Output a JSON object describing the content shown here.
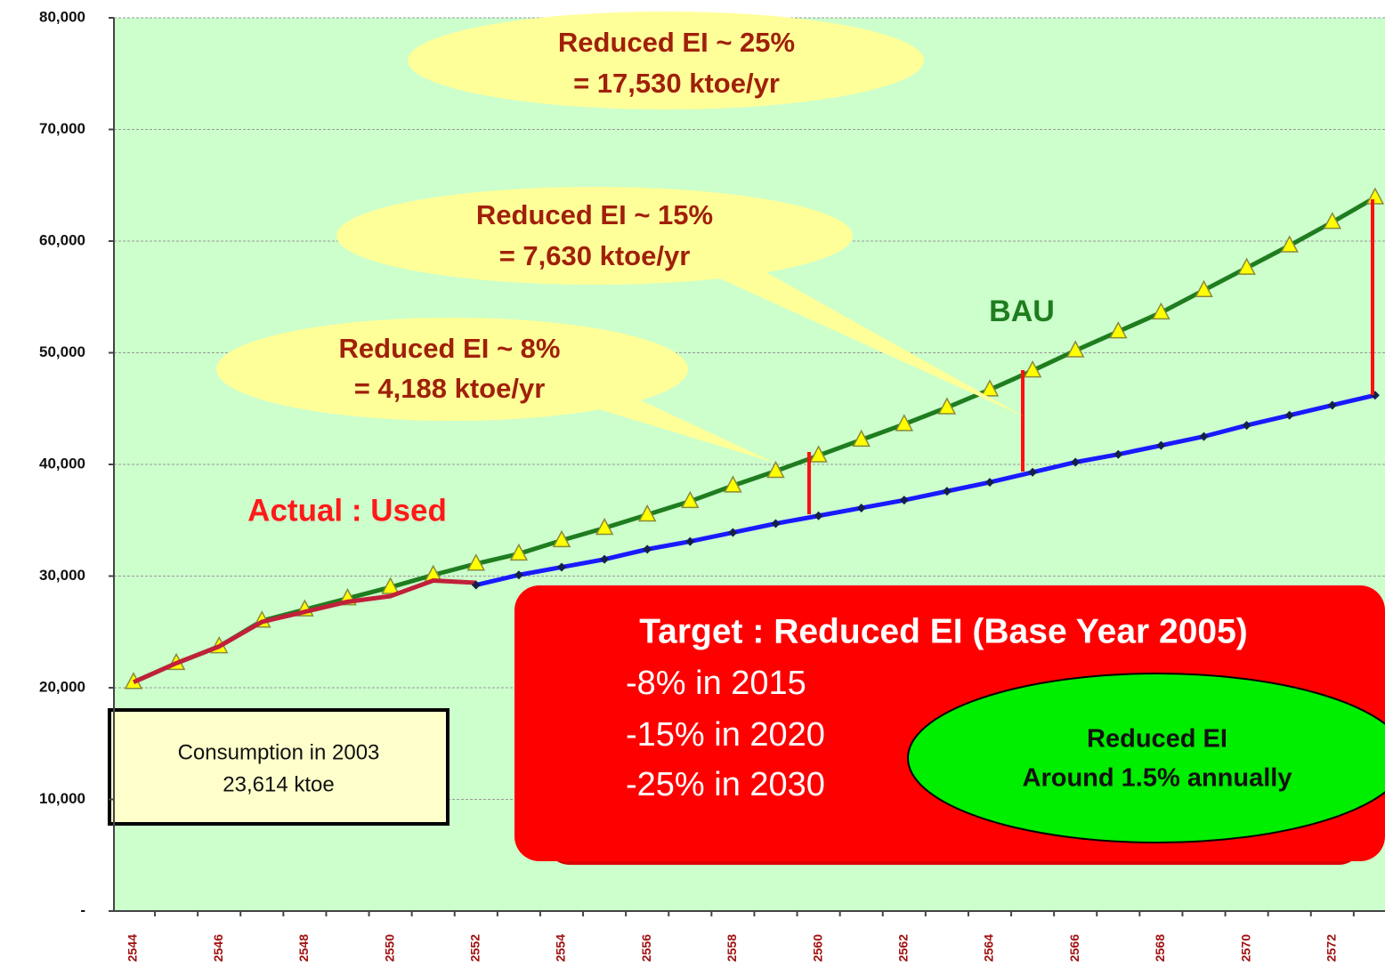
{
  "chart_data": {
    "type": "line",
    "categories": [
      "2544",
      null,
      "2546",
      null,
      "2548",
      null,
      "2550",
      null,
      "2552",
      null,
      "2554",
      null,
      "2556",
      null,
      "2558",
      null,
      "2560",
      null,
      "2562",
      null,
      "2564",
      null,
      "2566",
      null,
      "2568",
      null,
      "2570",
      null,
      "2572",
      null
    ],
    "series": [
      {
        "name": "BAU",
        "color": "#1f7d1f",
        "marker": "triangle",
        "values": [
          20500,
          22200,
          23700,
          26000,
          27000,
          28000,
          29000,
          30100,
          31100,
          32000,
          33200,
          34300,
          35500,
          36700,
          38100,
          39400,
          40800,
          42200,
          43600,
          45100,
          46700,
          48400,
          50200,
          51900,
          53600,
          55600,
          57600,
          59600,
          61700,
          63900
        ]
      },
      {
        "name": "Actual : Used",
        "color": "#c0203a",
        "marker": "none",
        "values": [
          20500,
          22200,
          23700,
          25900,
          26800,
          27700,
          28200,
          29600,
          29400,
          null,
          null,
          null,
          null,
          null,
          null,
          null,
          null,
          null,
          null,
          null,
          null,
          null,
          null,
          null,
          null,
          null,
          null,
          null,
          null,
          null
        ]
      },
      {
        "name": "Target",
        "color": "#1a1aff",
        "marker": "diamond",
        "values": [
          null,
          null,
          null,
          null,
          null,
          null,
          null,
          null,
          29200,
          30100,
          30800,
          31500,
          32400,
          33100,
          33900,
          34700,
          35400,
          36100,
          36800,
          37600,
          38400,
          39300,
          40200,
          40900,
          41700,
          42500,
          43500,
          44400,
          45300,
          46200
        ]
      }
    ],
    "ylim": [
      0,
      80000
    ],
    "yticks": [
      {
        "value": 0,
        "label": "-"
      },
      {
        "value": 10000,
        "label": "10,000"
      },
      {
        "value": 20000,
        "label": "20,000"
      },
      {
        "value": 30000,
        "label": "30,000"
      },
      {
        "value": 40000,
        "label": "40,000"
      },
      {
        "value": 50000,
        "label": "50,000"
      },
      {
        "value": 60000,
        "label": "60,000"
      },
      {
        "value": 70000,
        "label": "70,000"
      },
      {
        "value": 80000,
        "label": "80,000"
      }
    ],
    "grid": true,
    "callouts": [
      {
        "lines": [
          "Reduced  EI ~ 25%",
          "= 17,530 ktoe/yr"
        ]
      },
      {
        "lines": [
          "Reduced EI ~ 15%",
          "= 7,630 ktoe/yr"
        ]
      },
      {
        "lines": [
          "Reduced EI ~ 8%",
          "= 4,188 ktoe/yr"
        ]
      }
    ],
    "target_box": {
      "title": "Target : Reduced EI (Base Year 2005)",
      "lines": [
        "-8% in 2015",
        "-15% in 2020",
        "-25% in 2030"
      ]
    },
    "ellipse": {
      "lines": [
        "Reduced EI",
        "Around 1.5% annually"
      ]
    },
    "note_box": {
      "lines": [
        "Consumption in 2003",
        "23,614 ktoe"
      ]
    }
  }
}
